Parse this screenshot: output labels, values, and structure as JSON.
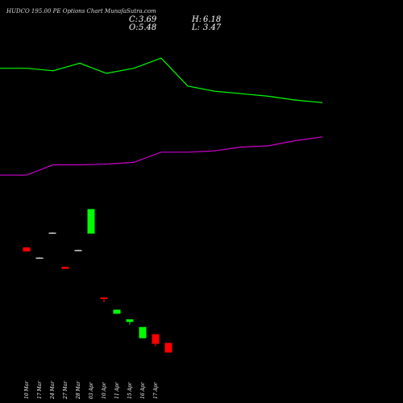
{
  "header": {
    "title": "HUDCO 195.00 PE Options Chart MunafaSutra.com",
    "close_label": "C:",
    "close_value": "3.69",
    "high_label": "H:",
    "high_value": "6.18",
    "open_label": "O:",
    "open_value": "5.48",
    "low_label": "L:",
    "low_value": "3.47"
  },
  "colors": {
    "background": "#000000",
    "bullish": "#00ff00",
    "bearish": "#ff0000",
    "neutral": "#cccccc",
    "line_green": "#00ff00",
    "line_magenta": "#cc00cc"
  },
  "chart_data": {
    "type": "candlestick",
    "x_labels": [
      "10 Mar",
      "17 Mar",
      "24 Mar",
      "27 Mar",
      "28 Mar",
      "03 Apr",
      "10 Apr",
      "11 Apr",
      "15 Apr",
      "16 Apr",
      "17 Apr"
    ],
    "candles": [
      {
        "date": "10 Mar",
        "open": 9.8,
        "high": 9.8,
        "low": 9.0,
        "close": 9.0
      },
      {
        "date": "17 Mar",
        "open": 7.8,
        "high": 7.85,
        "low": 7.75,
        "close": 7.8
      },
      {
        "date": "24 Mar",
        "open": 12.7,
        "high": 12.75,
        "low": 12.65,
        "close": 12.7
      },
      {
        "date": "27 Mar",
        "open": 6.0,
        "high": 6.05,
        "low": 5.6,
        "close": 5.6
      },
      {
        "date": "28 Mar",
        "open": 9.3,
        "high": 9.35,
        "low": 9.25,
        "close": 9.3
      },
      {
        "date": "03 Apr",
        "open": 12.5,
        "high": 17.3,
        "low": 12.5,
        "close": 17.3
      },
      {
        "date": "10 Apr",
        "open": 0.0,
        "high": 0.0,
        "low": -1.0,
        "close": -0.3
      },
      {
        "date": "11 Apr",
        "open": -3.2,
        "high": -2.4,
        "low": -3.2,
        "close": -2.4
      },
      {
        "date": "15 Apr",
        "open": -4.8,
        "high": -4.3,
        "low": -5.3,
        "close": -4.3
      },
      {
        "date": "16 Apr",
        "open": -8.0,
        "high": -5.8,
        "low": -8.0,
        "close": -5.8
      },
      {
        "date": "17 Apr",
        "open": -7.2,
        "high": -7.2,
        "low": -9.6,
        "close": -9.1
      },
      {
        "date": "",
        "open": -8.9,
        "high": -8.9,
        "low": -10.8,
        "close": -10.8
      }
    ],
    "series": [
      {
        "color": "#00ff00",
        "values": [
          5.4,
          5.4,
          5.3,
          5.6,
          5.2,
          5.4,
          5.8,
          4.7,
          4.5,
          4.4,
          4.3,
          4.15,
          4.05
        ]
      },
      {
        "color": "#cc00cc",
        "values": [
          1.2,
          1.2,
          1.6,
          1.6,
          1.63,
          1.7,
          2.1,
          2.1,
          2.15,
          2.3,
          2.35,
          2.55,
          2.7
        ]
      }
    ]
  }
}
